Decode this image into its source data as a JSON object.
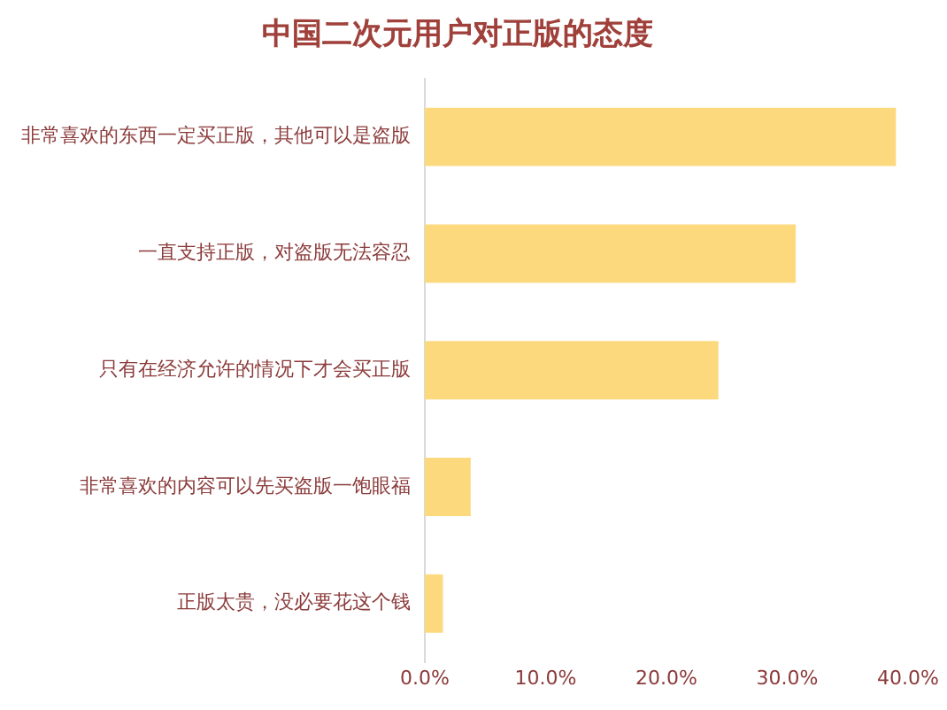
{
  "chart_data": {
    "type": "bar",
    "orientation": "horizontal",
    "title": "中国二次元用户对正版的态度",
    "categories": [
      "非常喜欢的东西一定买正版，其他可以是盗版",
      "一直支持正版，对盗版无法容忍",
      "只有在经济允许的情况下才会买正版",
      "非常喜欢的内容可以先买盗版一饱眼福",
      "正版太贵，没必要花这个钱"
    ],
    "values": [
      39.0,
      30.7,
      24.3,
      3.8,
      1.5
    ],
    "color": "#fdd97e",
    "xlim": [
      0,
      40
    ],
    "xticks": [
      {
        "value": 0,
        "label": "0.0%"
      },
      {
        "value": 10,
        "label": "10.0%"
      },
      {
        "value": 20,
        "label": "20.0%"
      },
      {
        "value": 30,
        "label": "30.0%"
      },
      {
        "value": 40,
        "label": "40.0%"
      }
    ],
    "grid": false,
    "legend": false
  }
}
